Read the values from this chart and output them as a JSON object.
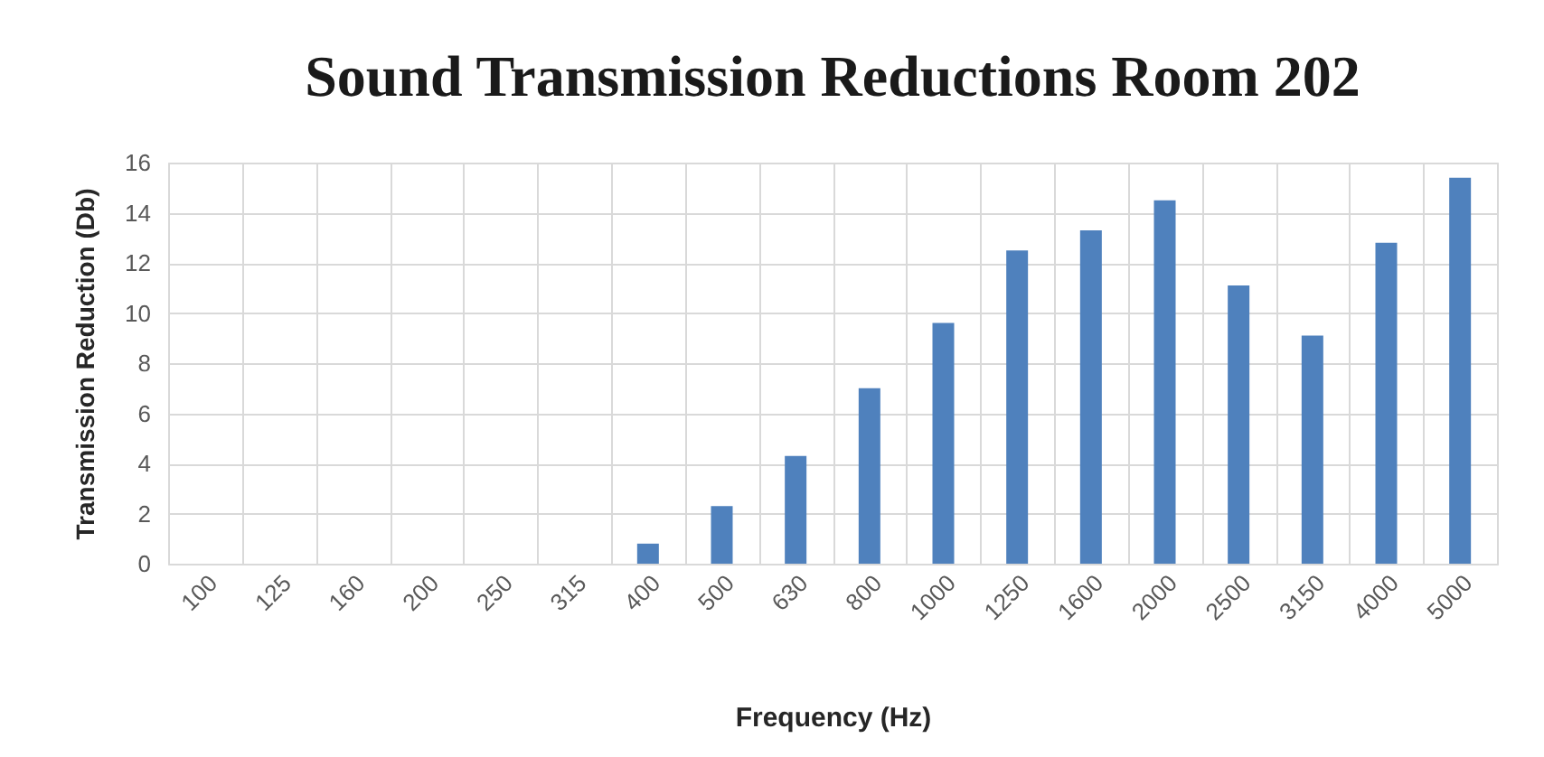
{
  "chart_data": {
    "type": "bar",
    "title": "Sound Transmission Reductions Room 202",
    "xlabel": "Frequency (Hz)",
    "ylabel": "Transmission  Reduction (Db)",
    "categories": [
      "100",
      "125",
      "160",
      "200",
      "250",
      "315",
      "400",
      "500",
      "630",
      "800",
      "1000",
      "1250",
      "1600",
      "2000",
      "2500",
      "3150",
      "4000",
      "5000"
    ],
    "values": [
      null,
      null,
      null,
      null,
      null,
      null,
      0.8,
      2.3,
      4.3,
      7.0,
      9.6,
      12.5,
      13.3,
      14.5,
      11.1,
      9.1,
      12.8,
      15.4
    ],
    "color": "#4f81bd",
    "ylim": [
      0,
      16
    ],
    "yticks": [
      0,
      2,
      4,
      6,
      8,
      10,
      12,
      14,
      16
    ],
    "grid": true
  }
}
